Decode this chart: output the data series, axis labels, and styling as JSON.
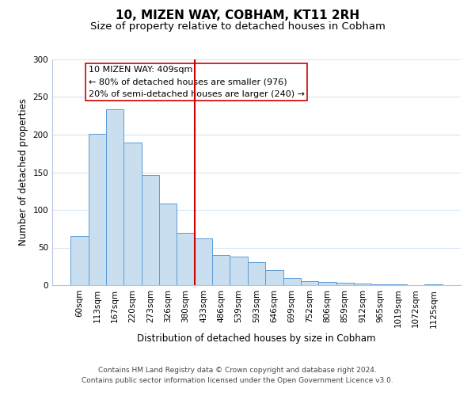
{
  "title": "10, MIZEN WAY, COBHAM, KT11 2RH",
  "subtitle": "Size of property relative to detached houses in Cobham",
  "xlabel": "Distribution of detached houses by size in Cobham",
  "ylabel": "Number of detached properties",
  "bar_labels": [
    "60sqm",
    "113sqm",
    "167sqm",
    "220sqm",
    "273sqm",
    "326sqm",
    "380sqm",
    "433sqm",
    "486sqm",
    "539sqm",
    "593sqm",
    "646sqm",
    "699sqm",
    "752sqm",
    "806sqm",
    "859sqm",
    "912sqm",
    "965sqm",
    "1019sqm",
    "1072sqm",
    "1125sqm"
  ],
  "bar_values": [
    65,
    201,
    234,
    190,
    146,
    108,
    70,
    62,
    40,
    38,
    31,
    20,
    10,
    5,
    4,
    3,
    2,
    1,
    1,
    0,
    1
  ],
  "bar_color": "#c9dff0",
  "bar_edge_color": "#5b9bd5",
  "vline_pos": 6.5,
  "vline_color": "#cc0000",
  "ann_line1": "10 MIZEN WAY: 409sqm",
  "ann_line2": "← 80% of detached houses are smaller (976)",
  "ann_line3": "20% of semi-detached houses are larger (240) →",
  "ylim": [
    0,
    300
  ],
  "yticks": [
    0,
    50,
    100,
    150,
    200,
    250,
    300
  ],
  "footer_line1": "Contains HM Land Registry data © Crown copyright and database right 2024.",
  "footer_line2": "Contains public sector information licensed under the Open Government Licence v3.0.",
  "background_color": "#ffffff",
  "grid_color": "#d4e6f5",
  "title_fontsize": 11,
  "subtitle_fontsize": 9.5,
  "axis_label_fontsize": 8.5,
  "tick_fontsize": 7.5,
  "annotation_fontsize": 8,
  "footer_fontsize": 6.5
}
